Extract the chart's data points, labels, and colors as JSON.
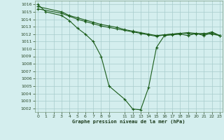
{
  "title": "Graphe pression niveau de la mer (hPa)",
  "bg_color": "#d4eeee",
  "grid_color": "#a8cccc",
  "line_color": "#1a5c1a",
  "ylim": [
    1001.5,
    1016.5
  ],
  "xlim": [
    -0.4,
    23.4
  ],
  "yticks": [
    1002,
    1003,
    1004,
    1005,
    1006,
    1007,
    1008,
    1009,
    1010,
    1011,
    1012,
    1013,
    1014,
    1015,
    1016
  ],
  "xticks": [
    0,
    1,
    2,
    3,
    4,
    5,
    6,
    7,
    8,
    9,
    11,
    12,
    13,
    14,
    15,
    16,
    17,
    18,
    19,
    20,
    21,
    22,
    23
  ],
  "s1x": [
    0,
    1,
    3,
    4,
    5,
    6,
    7,
    8,
    9,
    11,
    12,
    13,
    14,
    15,
    16,
    17,
    18,
    19,
    20,
    21,
    22,
    23
  ],
  "s1y": [
    1016.0,
    1015.0,
    1014.5,
    1013.8,
    1012.8,
    1012.0,
    1011.0,
    1009.0,
    1005.0,
    1003.2,
    1001.9,
    1001.8,
    1004.8,
    1010.2,
    1011.8,
    1011.9,
    1012.0,
    1011.8,
    1012.1,
    1011.8,
    1012.2,
    1011.8
  ],
  "s2x": [
    0,
    3,
    4,
    5,
    6,
    7,
    8,
    9,
    10,
    11,
    12,
    13,
    14,
    15,
    16,
    17,
    18,
    19,
    20,
    21,
    22,
    23
  ],
  "s2y": [
    1015.7,
    1015.0,
    1014.5,
    1014.2,
    1013.9,
    1013.6,
    1013.3,
    1013.1,
    1012.9,
    1012.6,
    1012.4,
    1012.2,
    1012.0,
    1011.8,
    1011.9,
    1012.0,
    1012.1,
    1012.1,
    1012.0,
    1012.1,
    1012.0,
    1011.8
  ],
  "s3x": [
    0,
    3,
    4,
    5,
    6,
    7,
    8,
    9,
    10,
    11,
    12,
    13,
    14,
    15,
    16,
    17,
    18,
    19,
    20,
    21,
    22,
    23
  ],
  "s3y": [
    1015.4,
    1014.8,
    1014.4,
    1014.0,
    1013.7,
    1013.4,
    1013.1,
    1012.9,
    1012.7,
    1012.5,
    1012.3,
    1012.1,
    1011.9,
    1011.7,
    1011.9,
    1012.0,
    1012.1,
    1012.2,
    1012.1,
    1012.0,
    1012.3,
    1011.8
  ]
}
